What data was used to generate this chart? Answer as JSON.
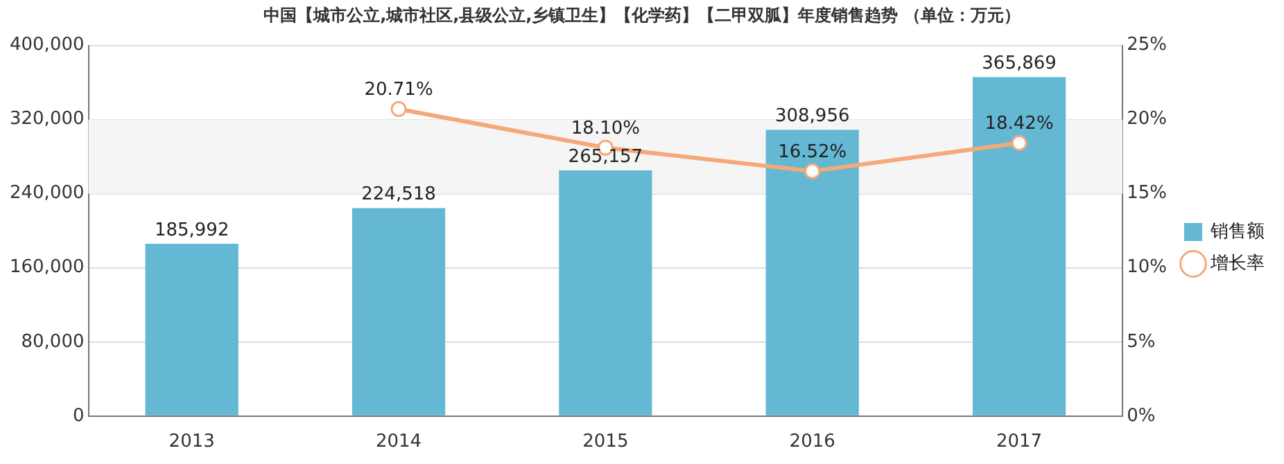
{
  "chart_data": {
    "type": "bar",
    "title": "中国【城市公立,城市社区,县级公立,乡镇卫生】【化学药】【二甲双胍】年度销售趋势 （单位：万元）",
    "categories": [
      "2013",
      "2014",
      "2015",
      "2016",
      "2017"
    ],
    "series": [
      {
        "name": "销售额",
        "color": "#64b8d4",
        "values": [
          185992,
          224518,
          265157,
          308956,
          365869
        ],
        "value_labels": [
          "185,992",
          "224,518",
          "265,157",
          "308,956",
          "365,869"
        ]
      },
      {
        "name": "增长率",
        "type": "line",
        "axis": "y2",
        "color": "#f4a97a",
        "values": [
          null,
          20.71,
          18.1,
          16.52,
          18.42
        ],
        "value_labels": [
          null,
          "20.71%",
          "18.10%",
          "16.52%",
          "18.42%"
        ]
      }
    ],
    "ylim": [
      0,
      400000
    ],
    "yticks": [
      {
        "value": 0,
        "label": "0"
      },
      {
        "value": 80000,
        "label": "80,000"
      },
      {
        "value": 160000,
        "label": "160,000"
      },
      {
        "value": 240000,
        "label": "240,000"
      },
      {
        "value": 320000,
        "label": "320,000"
      },
      {
        "value": 400000,
        "label": "400,000"
      }
    ],
    "y2lim": [
      0,
      25
    ],
    "y2ticks": [
      {
        "value": 0,
        "label": "0%"
      },
      {
        "value": 5,
        "label": "5%"
      },
      {
        "value": 10,
        "label": "10%"
      },
      {
        "value": 15,
        "label": "15%"
      },
      {
        "value": 20,
        "label": "20%"
      },
      {
        "value": 25,
        "label": "25%"
      }
    ],
    "bands": [
      {
        "axis": "y",
        "from": 240000,
        "to": 320000,
        "color": "#f5f5f5"
      }
    ],
    "grid": "y",
    "legend": "right",
    "marker": "circle",
    "line_style": "solid"
  }
}
